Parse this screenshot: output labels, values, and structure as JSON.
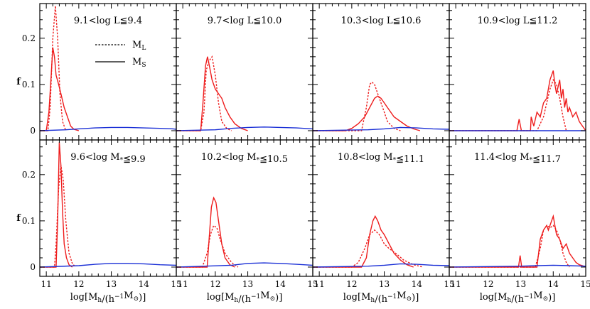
{
  "chart_data": {
    "type": "line",
    "ylabel": "f",
    "xlabel": "log[M_h/(h^-1 M_⊙)]",
    "xlim": [
      10.8,
      15.0
    ],
    "ylim": [
      -0.02,
      0.275
    ],
    "xticks": [
      "11",
      "12",
      "13",
      "14",
      "15"
    ],
    "yticks": [
      "0",
      "0.1",
      "0.2"
    ],
    "legend": {
      "placement": "top-left panel",
      "entries": [
        {
          "label": "M_L",
          "style": "dotted"
        },
        {
          "label": "M_S",
          "style": "solid"
        }
      ]
    },
    "colors": {
      "red": "#ee1c1c",
      "blue": "#1a2fd6"
    },
    "panels": [
      {
        "label": "9.1<log L≦9.4",
        "series": [
          {
            "line": "dotted",
            "color": "red",
            "x": [
              10.8,
              11.05,
              11.12,
              11.2,
              11.28,
              11.35,
              11.42,
              11.5,
              11.6
            ],
            "y": [
              0,
              0,
              0.05,
              0.2,
              0.27,
              0.2,
              0.08,
              0.02,
              0
            ]
          },
          {
            "line": "solid",
            "color": "red",
            "x": [
              10.8,
              11.0,
              11.08,
              11.15,
              11.2,
              11.25,
              11.3,
              11.38,
              11.45,
              11.55,
              11.65,
              11.75,
              11.85,
              12.0
            ],
            "y": [
              0,
              0,
              0.04,
              0.12,
              0.18,
              0.16,
              0.12,
              0.1,
              0.08,
              0.05,
              0.03,
              0.01,
              0.003,
              0
            ]
          },
          {
            "line": "solid",
            "color": "blue",
            "x": [
              10.8,
              11.6,
              12.0,
              12.5,
              13.0,
              13.5,
              14.0,
              14.5,
              14.9,
              15.0
            ],
            "y": [
              0,
              0.002,
              0.004,
              0.006,
              0.007,
              0.007,
              0.006,
              0.005,
              0.004,
              0.003
            ]
          }
        ]
      },
      {
        "label": "9.7<log L≦10.0",
        "series": [
          {
            "line": "dotted",
            "color": "red",
            "x": [
              10.8,
              11.55,
              11.65,
              11.72,
              11.8,
              11.9,
              12.0,
              12.1,
              12.2,
              12.35,
              12.5
            ],
            "y": [
              0,
              0,
              0.04,
              0.13,
              0.15,
              0.16,
              0.12,
              0.06,
              0.02,
              0.005,
              0
            ]
          },
          {
            "line": "solid",
            "color": "red",
            "x": [
              10.8,
              11.55,
              11.62,
              11.7,
              11.76,
              11.82,
              11.9,
              12.0,
              12.1,
              12.2,
              12.3,
              12.45,
              12.6,
              12.8,
              13.0
            ],
            "y": [
              0,
              0,
              0.06,
              0.14,
              0.16,
              0.14,
              0.11,
              0.09,
              0.08,
              0.07,
              0.05,
              0.03,
              0.015,
              0.005,
              0
            ]
          },
          {
            "line": "solid",
            "color": "blue",
            "x": [
              10.8,
              12.0,
              12.5,
              13.0,
              13.5,
              14.0,
              14.5,
              15.0
            ],
            "y": [
              0,
              0.002,
              0.005,
              0.007,
              0.008,
              0.007,
              0.006,
              0.004
            ]
          }
        ]
      },
      {
        "label": "10.3<log L≦10.6",
        "series": [
          {
            "line": "dotted",
            "color": "red",
            "x": [
              10.8,
              12.3,
              12.45,
              12.55,
              12.62,
              12.7,
              12.8,
              12.95,
              13.1,
              13.3,
              13.5
            ],
            "y": [
              0,
              0,
              0.05,
              0.1,
              0.105,
              0.1,
              0.08,
              0.05,
              0.02,
              0.005,
              0
            ]
          },
          {
            "line": "solid",
            "color": "red",
            "x": [
              10.8,
              11.8,
              12.0,
              12.2,
              12.4,
              12.55,
              12.7,
              12.8,
              12.9,
              13.0,
              13.1,
              13.3,
              13.5,
              13.7,
              13.9,
              14.1
            ],
            "y": [
              0,
              0,
              0.005,
              0.015,
              0.03,
              0.05,
              0.07,
              0.075,
              0.07,
              0.06,
              0.05,
              0.03,
              0.02,
              0.01,
              0.004,
              0
            ]
          },
          {
            "line": "solid",
            "color": "blue",
            "x": [
              10.8,
              12.5,
              13.0,
              13.5,
              14.0,
              14.5,
              15.0
            ],
            "y": [
              0,
              0.002,
              0.004,
              0.007,
              0.006,
              0.004,
              0.003
            ]
          }
        ]
      },
      {
        "label": "10.9<log L≦11.2",
        "series": [
          {
            "line": "dotted",
            "color": "red",
            "x": [
              10.8,
              13.5,
              13.7,
              13.8,
              13.9,
              14.0,
              14.1,
              14.2,
              14.3,
              14.4
            ],
            "y": [
              0,
              0,
              0.03,
              0.06,
              0.09,
              0.11,
              0.1,
              0.07,
              0.03,
              0
            ]
          },
          {
            "line": "solid",
            "color": "red",
            "x": [
              10.8,
              12.88,
              12.95,
              13.02,
              13.1,
              13.3,
              13.32,
              13.4,
              13.5,
              13.6,
              13.7,
              13.8,
              13.9,
              14.0,
              14.05,
              14.1,
              14.2,
              14.25,
              14.3,
              14.35,
              14.4,
              14.45,
              14.5,
              14.6,
              14.7,
              14.8,
              14.9,
              15.0
            ],
            "y": [
              0,
              0,
              0.025,
              0,
              0,
              0,
              0.03,
              0.01,
              0.04,
              0.03,
              0.06,
              0.07,
              0.11,
              0.13,
              0.1,
              0.08,
              0.11,
              0.07,
              0.09,
              0.05,
              0.07,
              0.04,
              0.05,
              0.03,
              0.04,
              0.02,
              0.01,
              0
            ]
          },
          {
            "line": "solid",
            "color": "blue",
            "x": [
              10.8,
              15.0
            ],
            "y": [
              0,
              0
            ]
          }
        ]
      },
      {
        "label": "9.6<log M*≦9.9",
        "series": [
          {
            "line": "dotted",
            "color": "red",
            "x": [
              10.8,
              11.25,
              11.3,
              11.38,
              11.45,
              11.52,
              11.6,
              11.7,
              11.8,
              11.9
            ],
            "y": [
              0,
              0,
              0.05,
              0.17,
              0.22,
              0.19,
              0.1,
              0.03,
              0.008,
              0
            ]
          },
          {
            "line": "solid",
            "color": "red",
            "x": [
              10.8,
              11.3,
              11.35,
              11.4,
              11.45,
              11.5,
              11.55,
              11.62,
              11.7,
              11.8
            ],
            "y": [
              0,
              0,
              0.1,
              0.27,
              0.22,
              0.12,
              0.05,
              0.02,
              0.005,
              0
            ]
          },
          {
            "line": "solid",
            "color": "blue",
            "x": [
              10.8,
              12.0,
              12.5,
              13.0,
              13.5,
              14.0,
              14.5,
              15.0
            ],
            "y": [
              0,
              0.003,
              0.006,
              0.008,
              0.008,
              0.007,
              0.005,
              0.004
            ]
          }
        ]
      },
      {
        "label": "10.2<log M*≦10.5",
        "series": [
          {
            "line": "dotted",
            "color": "red",
            "x": [
              10.8,
              11.6,
              11.75,
              11.85,
              11.95,
              12.05,
              12.15,
              12.3,
              12.5,
              12.7
            ],
            "y": [
              0,
              0,
              0.03,
              0.07,
              0.09,
              0.085,
              0.06,
              0.03,
              0.01,
              0
            ]
          },
          {
            "line": "solid",
            "color": "red",
            "x": [
              10.8,
              11.75,
              11.82,
              11.88,
              11.95,
              12.02,
              12.1,
              12.2,
              12.3,
              12.45,
              12.6
            ],
            "y": [
              0,
              0,
              0.07,
              0.13,
              0.15,
              0.14,
              0.1,
              0.05,
              0.02,
              0.005,
              0
            ]
          },
          {
            "line": "solid",
            "color": "blue",
            "x": [
              10.8,
              12.5,
              13.0,
              13.5,
              14.0,
              14.5,
              15.0
            ],
            "y": [
              0,
              0.004,
              0.008,
              0.009,
              0.008,
              0.006,
              0.004
            ]
          }
        ]
      },
      {
        "label": "10.8<log M*≦11.1",
        "series": [
          {
            "line": "dotted",
            "color": "red",
            "x": [
              10.8,
              12.0,
              12.2,
              12.4,
              12.55,
              12.7,
              12.85,
              13.0,
              13.15,
              13.35,
              13.6,
              13.9,
              14.2
            ],
            "y": [
              0,
              0,
              0.01,
              0.04,
              0.07,
              0.08,
              0.07,
              0.05,
              0.04,
              0.03,
              0.015,
              0.005,
              0
            ]
          },
          {
            "line": "solid",
            "color": "red",
            "x": [
              10.8,
              12.3,
              12.45,
              12.55,
              12.65,
              12.72,
              12.8,
              12.9,
              13.0,
              13.15,
              13.3,
              13.5,
              13.7,
              13.9
            ],
            "y": [
              0,
              0,
              0.02,
              0.07,
              0.1,
              0.11,
              0.1,
              0.08,
              0.07,
              0.05,
              0.03,
              0.015,
              0.005,
              0
            ]
          },
          {
            "line": "solid",
            "color": "blue",
            "x": [
              10.8,
              12.5,
              13.0,
              13.5,
              14.0,
              14.5,
              15.0
            ],
            "y": [
              0,
              0.002,
              0.004,
              0.007,
              0.006,
              0.004,
              0.003
            ]
          }
        ]
      },
      {
        "label": "11.4<log M*≦11.7",
        "series": [
          {
            "line": "dotted",
            "color": "red",
            "x": [
              10.8,
              13.45,
              13.6,
              13.7,
              13.8,
              13.9,
              14.0,
              14.1,
              14.2,
              14.3,
              14.4,
              14.5
            ],
            "y": [
              0,
              0,
              0.04,
              0.08,
              0.09,
              0.085,
              0.09,
              0.08,
              0.06,
              0.03,
              0.01,
              0
            ]
          },
          {
            "line": "solid",
            "color": "red",
            "x": [
              10.8,
              12.93,
              12.98,
              13.03,
              13.1,
              13.5,
              13.6,
              13.7,
              13.8,
              13.85,
              13.95,
              14.0,
              14.05,
              14.1,
              14.2,
              14.3,
              14.4,
              14.5,
              14.6,
              14.7,
              14.8,
              14.9,
              15.0
            ],
            "y": [
              0,
              0,
              0.025,
              0,
              0,
              0,
              0.06,
              0.08,
              0.09,
              0.08,
              0.1,
              0.11,
              0.09,
              0.07,
              0.06,
              0.04,
              0.05,
              0.03,
              0.02,
              0.01,
              0.005,
              0.003,
              0
            ]
          },
          {
            "line": "solid",
            "color": "blue",
            "x": [
              10.8,
              13.0,
              13.5,
              14.0,
              14.5,
              15.0
            ],
            "y": [
              0,
              0.002,
              0.003,
              0.004,
              0.003,
              0.002
            ]
          }
        ]
      }
    ]
  }
}
